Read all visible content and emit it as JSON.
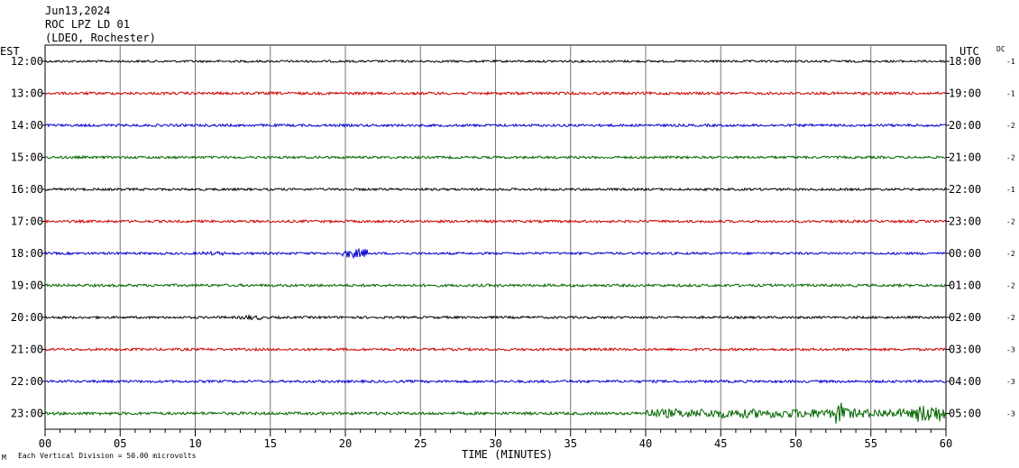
{
  "header": {
    "date": "Jun13,2024",
    "station": "ROC LPZ LD 01",
    "network": "(LDEO, Rochester)"
  },
  "axis": {
    "left_zone": "EST",
    "right_zone": "UTC",
    "dc_label": "DC",
    "xlabel": "TIME (MINUTES)",
    "scale_note": "Each Vertical Division =   50.00 microvolts",
    "corner_mark": "M"
  },
  "chart_data": {
    "type": "line",
    "title": "",
    "xlabel": "TIME (MINUTES)",
    "ylabel": "",
    "xlim": [
      0,
      60
    ],
    "x_ticks": [
      "00",
      "05",
      "10",
      "15",
      "20",
      "25",
      "30",
      "35",
      "40",
      "45",
      "50",
      "55",
      "60"
    ],
    "grid": true,
    "series": [
      {
        "est": "12:00",
        "utc": "18:00",
        "dc": "-1",
        "color": "#000000",
        "amp": 1.2
      },
      {
        "est": "13:00",
        "utc": "19:00",
        "dc": "-1",
        "color": "#cc0000",
        "amp": 1.5
      },
      {
        "est": "14:00",
        "utc": "20:00",
        "dc": "-2",
        "color": "#0000cc",
        "amp": 1.4
      },
      {
        "est": "15:00",
        "utc": "21:00",
        "dc": "-2",
        "color": "#006600",
        "amp": 1.4
      },
      {
        "est": "16:00",
        "utc": "22:00",
        "dc": "-1",
        "color": "#000000",
        "amp": 1.3
      },
      {
        "est": "17:00",
        "utc": "23:00",
        "dc": "-2",
        "color": "#cc0000",
        "amp": 1.4
      },
      {
        "est": "18:00",
        "utc": "00:00",
        "dc": "-2",
        "color": "#0000cc",
        "amp": 1.3,
        "events": [
          {
            "start": 10.5,
            "end": 12.0,
            "amp": 2
          },
          {
            "start": 19.8,
            "end": 21.5,
            "amp": 5
          }
        ]
      },
      {
        "est": "19:00",
        "utc": "01:00",
        "dc": "-2",
        "color": "#006600",
        "amp": 1.5
      },
      {
        "est": "20:00",
        "utc": "02:00",
        "dc": "-2",
        "color": "#000000",
        "amp": 1.3,
        "events": [
          {
            "start": 13,
            "end": 14.5,
            "amp": 2.5
          }
        ]
      },
      {
        "est": "21:00",
        "utc": "03:00",
        "dc": "-3",
        "color": "#cc0000",
        "amp": 1.4
      },
      {
        "est": "22:00",
        "utc": "04:00",
        "dc": "-3",
        "color": "#0000cc",
        "amp": 1.4
      },
      {
        "est": "23:00",
        "utc": "05:00",
        "dc": "-3",
        "color": "#006600",
        "amp": 1.6,
        "events": [
          {
            "start": 40,
            "end": 60,
            "amp": 5
          },
          {
            "start": 52.5,
            "end": 53.5,
            "amp": 12
          },
          {
            "start": 58,
            "end": 60,
            "amp": 10
          }
        ]
      }
    ]
  }
}
